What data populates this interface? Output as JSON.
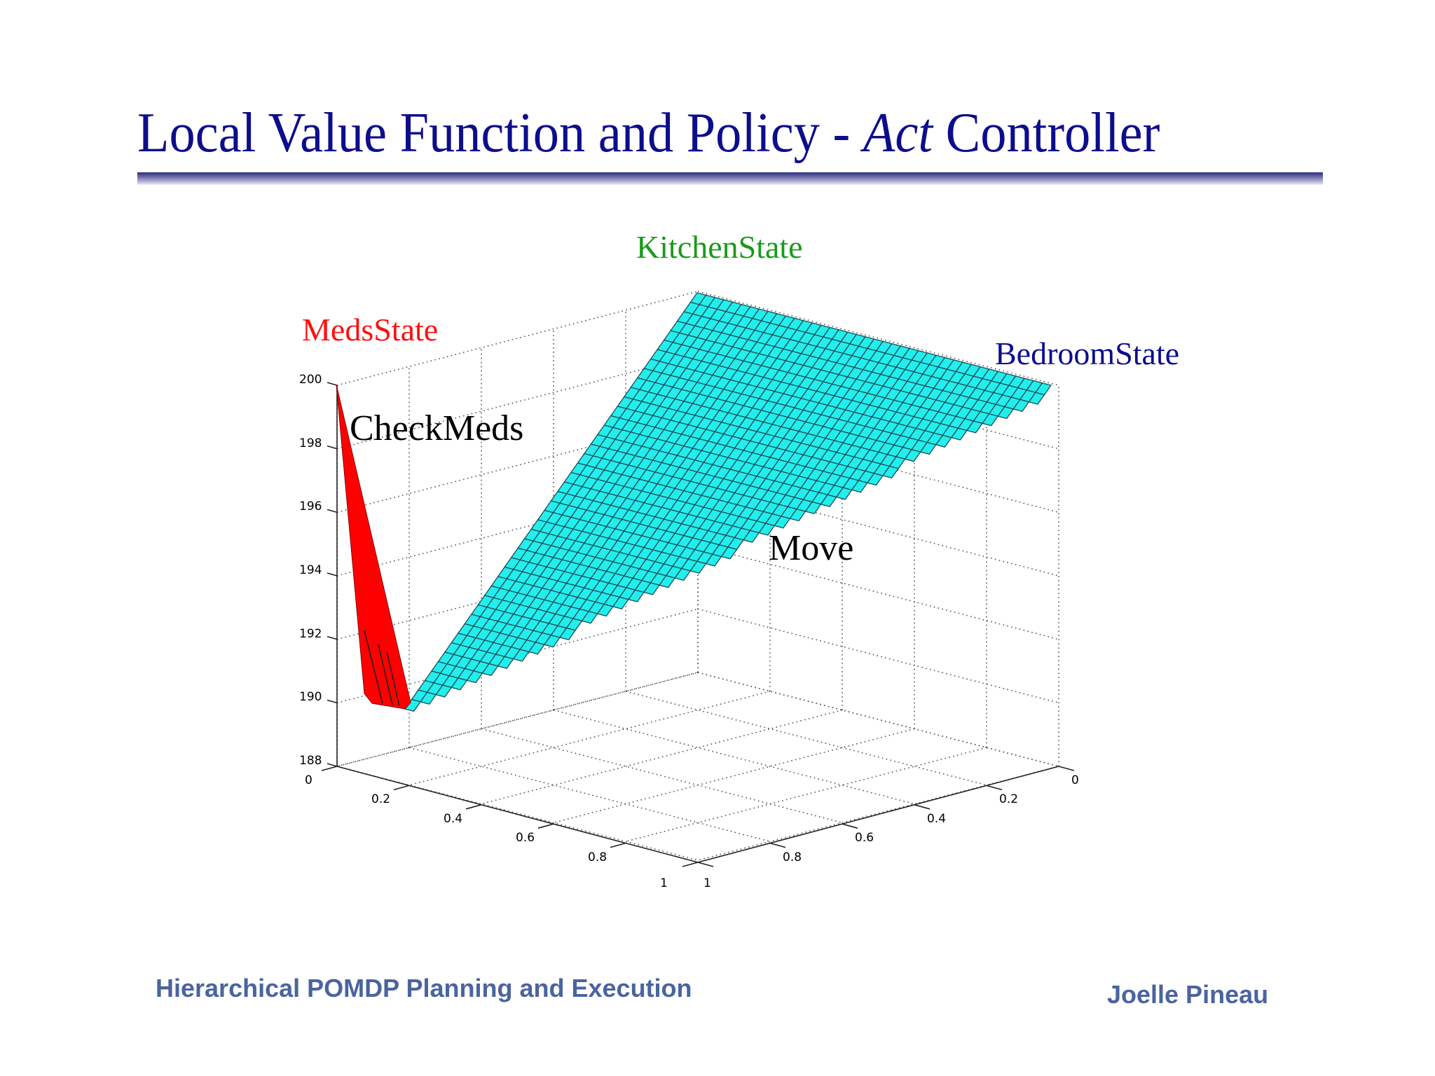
{
  "slide": {
    "title_prefix": "Local Value Function and Policy - ",
    "title_italic": "Act",
    "title_suffix": " Controller",
    "footer_left": "Hierarchical POMDP Planning and Execution",
    "footer_right": "Joelle Pineau"
  },
  "labels": {
    "kitchen": "KitchenState",
    "meds": "MedsState",
    "bedroom": "BedroomState",
    "checkmeds": "CheckMeds",
    "move": "Move"
  },
  "colors": {
    "title": "#0d0d8c",
    "kitchen": "#1a9a1a",
    "meds": "#ff1010",
    "bedroom": "#0d0d8c",
    "surface_move": "#22eeee",
    "surface_checkmeds": "#ff0000",
    "footer": "#4a64a0"
  },
  "chart_data": {
    "type": "surface3d",
    "title": "Local Value Function and Policy - Act Controller",
    "zlabel": "",
    "zlim": [
      188,
      200
    ],
    "z_ticks": [
      "188",
      "190",
      "192",
      "194",
      "196",
      "198",
      "200"
    ],
    "x_ticks": [
      "0",
      "0.2",
      "0.4",
      "0.6",
      "0.8",
      "1"
    ],
    "y_ticks": [
      "0",
      "0.2",
      "0.4",
      "0.6",
      "0.8",
      "1"
    ],
    "grid": true,
    "corners": [
      {
        "name": "MedsState",
        "value": 200
      },
      {
        "name": "KitchenState",
        "value": 200
      },
      {
        "name": "BedroomState",
        "value": 200
      }
    ],
    "minimum_value": 189.8,
    "regions": [
      {
        "action": "CheckMeds",
        "color": "red",
        "near": "MedsState",
        "value_range": [
          190,
          200
        ]
      },
      {
        "action": "Move",
        "color": "cyan",
        "near": "KitchenState/BedroomState",
        "value_range": [
          189.8,
          200
        ]
      }
    ],
    "annotations": [
      "MedsState",
      "KitchenState",
      "BedroomState",
      "CheckMeds",
      "Move"
    ]
  }
}
